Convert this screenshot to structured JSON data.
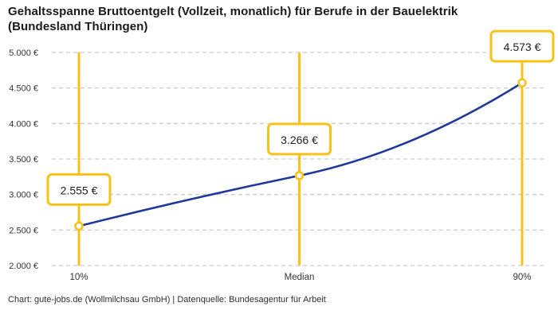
{
  "header": {
    "title_line1": "Gehaltsspanne Bruttoentgelt (Vollzeit, monatlich) für Berufe in der Bauelektrik",
    "title_line2": "(Bundesland Thüringen)"
  },
  "footer": {
    "credit": "Chart: gute-jobs.de (Wollmilchsau GmbH) | Datenquelle: Bundesagentur für Arbeit"
  },
  "colors": {
    "accent_yellow": "#F8C117",
    "line_blue": "#1F3899",
    "grid_gray": "#CDCDCD",
    "axis_text": "#333333",
    "label_text": "#1f1f1f",
    "marker_fill": "#ffffff"
  },
  "chart_data": {
    "type": "line",
    "title": "Gehaltsspanne Bruttoentgelt (Vollzeit, monatlich) für Berufe in der Bauelektrik (Bundesland Thüringen)",
    "categories": [
      "10%",
      "Median",
      "90%"
    ],
    "values": [
      2555,
      3266,
      4573
    ],
    "value_labels": [
      "2.555 €",
      "3.266 €",
      "4.573 €"
    ],
    "series": [
      {
        "name": "Bruttoentgelt",
        "values": [
          2555,
          3266,
          4573
        ]
      }
    ],
    "yticks": [
      2000,
      2500,
      3000,
      3500,
      4000,
      4500,
      5000
    ],
    "ytick_labels": [
      "2.000 €",
      "2.500 €",
      "3.000 €",
      "3.500 €",
      "4.000 €",
      "4.500 €",
      "5.000 €"
    ],
    "ylim": [
      2000,
      5000
    ],
    "xlabel": "",
    "ylabel": "",
    "grid": true,
    "legend": "none",
    "marker_style": "open-circle",
    "range_line_style": "vertical-yellow-line-with-value-box"
  }
}
